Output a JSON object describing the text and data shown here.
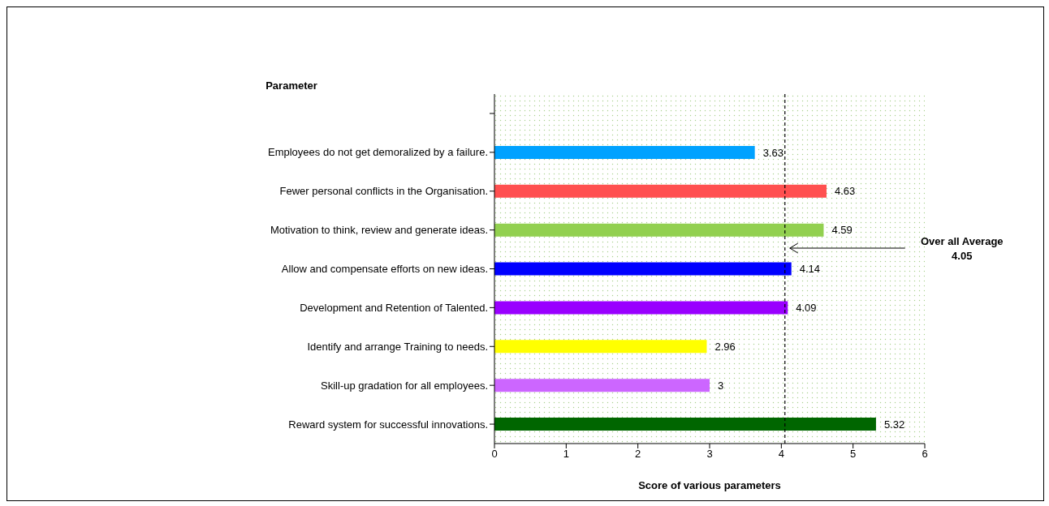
{
  "chart_data": {
    "type": "bar",
    "orientation": "horizontal",
    "ylabel": "Parameter",
    "xlabel": "Score of various parameters",
    "categories": [
      null,
      "Employees do not get demoralized by a failure.",
      "Fewer personal conflicts in the Organisation.",
      "Motivation to think, review and generate ideas.",
      "Allow and compensate efforts on new ideas.",
      "Development and Retention of Talented.",
      "Identify and arrange Training to needs.",
      "Skill-up gradation for all employees.",
      "Reward system for successful innovations."
    ],
    "values": [
      null,
      3.63,
      4.63,
      4.59,
      4.14,
      4.09,
      2.96,
      3,
      5.32
    ],
    "colors": [
      "#000000",
      "#00a2ff",
      "#ff5050",
      "#92d050",
      "#0000ff",
      "#9900ff",
      "#ffff00",
      "#cc66ff",
      "#006600"
    ],
    "xlim": [
      0,
      6
    ],
    "xticks": [
      0,
      1,
      2,
      3,
      4,
      5,
      6
    ],
    "data_labels": true,
    "grid": false,
    "ref_lines": [
      {
        "axis": "x",
        "value": 4.05,
        "label": "Over all Average\n4.05",
        "color": "#000000",
        "line_style": "dashed"
      }
    ]
  }
}
